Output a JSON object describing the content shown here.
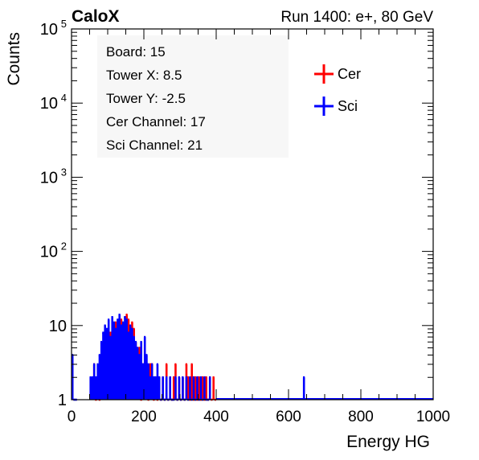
{
  "header": {
    "left_label": "CaloX",
    "right_label": "Run 1400: e+, 80 GeV"
  },
  "info_box": {
    "lines": [
      "Board: 15",
      "Tower X: 8.5",
      "Tower Y: -2.5",
      "Cer Channel: 17",
      "Sci Channel: 21"
    ]
  },
  "legend": {
    "entries": [
      {
        "label": "Cer",
        "color": "#ff0000"
      },
      {
        "label": "Sci",
        "color": "#0000ff"
      }
    ]
  },
  "chart_data": {
    "type": "histogram",
    "xlabel": "Energy HG",
    "ylabel": "Counts",
    "xlim": [
      0,
      1000
    ],
    "ylim": [
      1,
      100000
    ],
    "yscale": "log",
    "grid": false,
    "legend_position": "top-right",
    "x_ticks": [
      "0",
      "200",
      "400",
      "600",
      "800",
      "1000"
    ],
    "y_ticks": [
      {
        "value": 1,
        "label": "1",
        "exp": ""
      },
      {
        "value": 10,
        "label": "10",
        "exp": ""
      },
      {
        "value": 100,
        "label": "10",
        "exp": "2"
      },
      {
        "value": 1000,
        "label": "10",
        "exp": "3"
      },
      {
        "value": 10000,
        "label": "10",
        "exp": "4"
      },
      {
        "value": 100000,
        "label": "10",
        "exp": "5"
      }
    ],
    "series": [
      {
        "name": "Cer",
        "color": "#ff0000",
        "x": [
          60,
          65,
          70,
          75,
          80,
          85,
          90,
          95,
          100,
          105,
          110,
          115,
          120,
          125,
          130,
          135,
          140,
          145,
          150,
          155,
          160,
          165,
          170,
          175,
          180,
          185,
          190,
          195,
          200,
          205,
          210,
          215,
          220,
          225,
          230,
          235,
          240,
          245,
          250,
          255,
          260,
          265,
          270,
          275,
          280,
          285,
          290,
          295,
          300,
          305,
          310,
          315,
          320,
          325,
          330,
          335,
          340,
          345,
          350,
          355,
          360,
          365,
          370,
          375,
          380,
          385,
          390,
          395
        ],
        "values": [
          3,
          1,
          2,
          1,
          3,
          4,
          2,
          5,
          6,
          8,
          4,
          7,
          11,
          10,
          9,
          12,
          8,
          10,
          14,
          12,
          10,
          11,
          9,
          6,
          4,
          5,
          1,
          3,
          2,
          2,
          1,
          3,
          3,
          1,
          2,
          1,
          2,
          1,
          2,
          1,
          3,
          1,
          2,
          1,
          2,
          3,
          1,
          2,
          1,
          2,
          1,
          3,
          2,
          1,
          3,
          1,
          2,
          1,
          2,
          1,
          2,
          1,
          2,
          1,
          2,
          1,
          2,
          1
        ]
      },
      {
        "name": "Sci",
        "color": "#0000ff",
        "x": [
          0,
          5,
          10,
          50,
          55,
          60,
          65,
          70,
          75,
          80,
          85,
          90,
          95,
          100,
          105,
          110,
          115,
          120,
          125,
          130,
          135,
          140,
          145,
          150,
          155,
          160,
          165,
          170,
          175,
          180,
          185,
          190,
          195,
          200,
          205,
          210,
          215,
          220,
          225,
          230,
          235,
          240,
          245,
          250,
          255,
          260,
          265,
          270,
          275,
          280,
          285,
          290,
          295,
          300,
          305,
          310,
          315,
          320,
          325,
          330,
          335,
          340,
          345,
          350,
          355,
          360,
          365,
          370,
          375,
          380,
          640
        ],
        "values": [
          4,
          1,
          1,
          2,
          2,
          3,
          2,
          3,
          4,
          6,
          8,
          10,
          9,
          12,
          7,
          13,
          11,
          9,
          12,
          14,
          10,
          11,
          13,
          12,
          8,
          10,
          9,
          7,
          6,
          5,
          4,
          6,
          3,
          7,
          4,
          3,
          2,
          3,
          2,
          2,
          3,
          2,
          1,
          2,
          1,
          2,
          1,
          2,
          1,
          1,
          2,
          1,
          2,
          1,
          2,
          1,
          2,
          1,
          2,
          1,
          2,
          1,
          2,
          1,
          2,
          1,
          2,
          1,
          1,
          2,
          2
        ]
      }
    ]
  }
}
